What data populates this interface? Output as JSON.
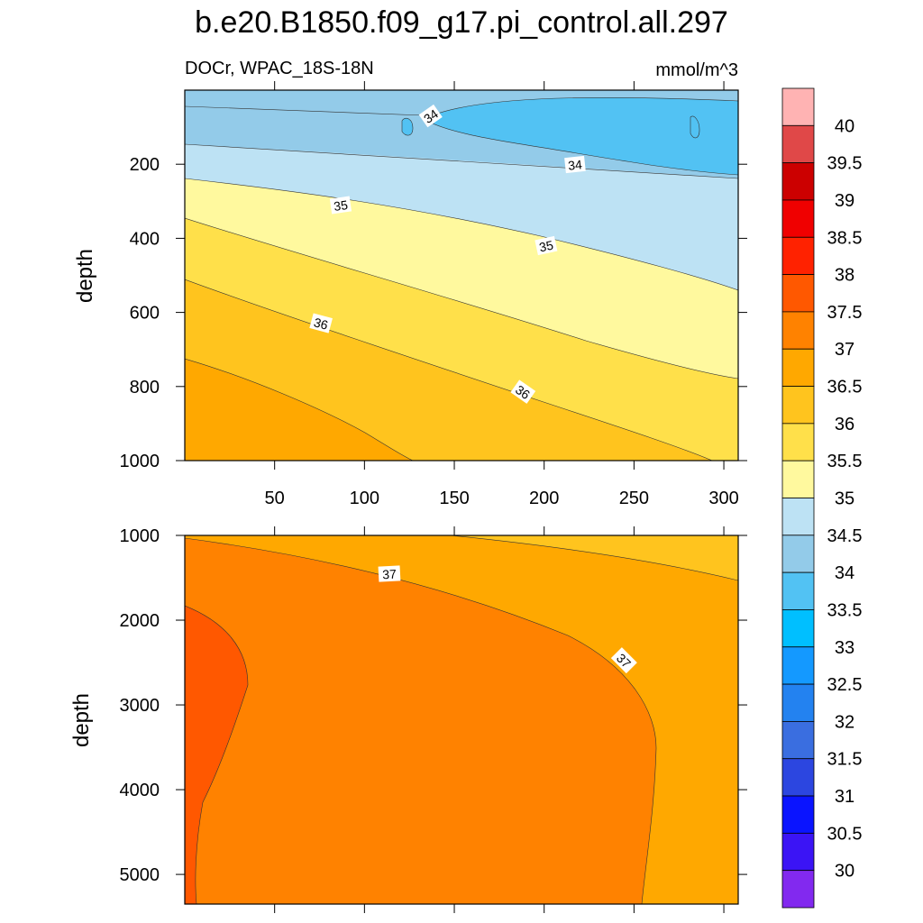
{
  "title": "b.e20.B1850.f09_g17.pi_control.all.297",
  "subtitle_left": "DOCr, WPAC_18S-18N",
  "subtitle_right": "mmol/m^3",
  "chart_data": [
    {
      "type": "contour",
      "panel": "upper",
      "ylabel": "depth",
      "xlim": [
        0,
        308
      ],
      "ylim": [
        1000,
        0
      ],
      "x_ticks": [
        "50",
        "100",
        "150",
        "200",
        "250",
        "300"
      ],
      "y_ticks": [
        "200",
        "400",
        "600",
        "800",
        "1000"
      ],
      "contour_labels": [
        "34",
        "34",
        "35",
        "35",
        "36",
        "36"
      ]
    },
    {
      "type": "contour",
      "panel": "lower",
      "ylabel": "depth",
      "xlim": [
        0,
        308
      ],
      "ylim": [
        5350,
        1000
      ],
      "y_ticks": [
        "1000",
        "2000",
        "3000",
        "4000",
        "5000"
      ],
      "contour_labels": [
        "37",
        "37"
      ]
    }
  ],
  "colorbar": {
    "labels": [
      "40",
      "39.5",
      "39",
      "38.5",
      "38",
      "37.5",
      "37",
      "36.5",
      "36",
      "35.5",
      "35",
      "34.5",
      "34",
      "33.5",
      "33",
      "32.5",
      "32",
      "31.5",
      "31",
      "30.5",
      "30"
    ],
    "colors": [
      "#ffb3b3",
      "#e04848",
      "#cc0000",
      "#f00000",
      "#ff2200",
      "#ff5800",
      "#ff8200",
      "#ffa800",
      "#ffc41e",
      "#ffe04a",
      "#fff99e",
      "#bde2f4",
      "#93cbe9",
      "#52c2f3",
      "#00bfff",
      "#1499ff",
      "#2382f0",
      "#3a6ee0",
      "#2c46e0",
      "#0a14ff",
      "#3b14f5",
      "#8229ef"
    ]
  }
}
